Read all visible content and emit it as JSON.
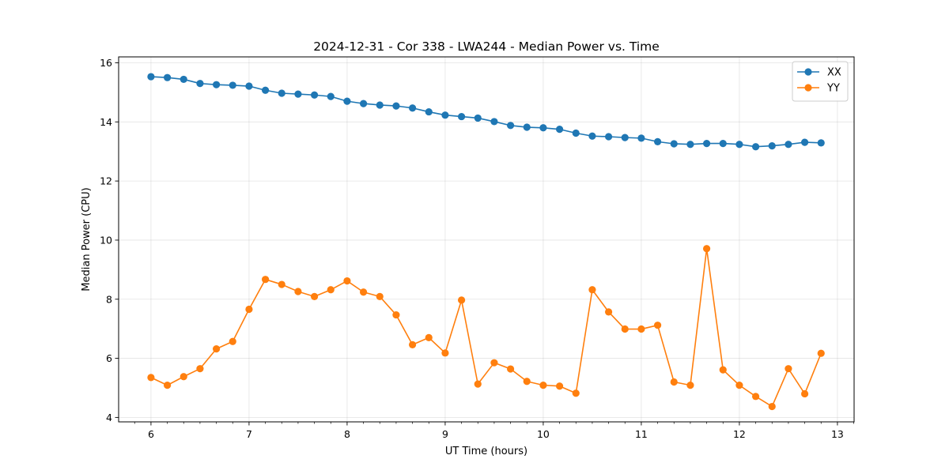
{
  "chart_data": {
    "type": "line",
    "title": "2024-12-31 - Cor 338 - LWA244 - Median Power vs. Time",
    "xlabel": "UT Time (hours)",
    "ylabel": "Median Power (CPU)",
    "xlim": [
      5.67,
      13.17
    ],
    "ylim": [
      3.85,
      16.2
    ],
    "x_ticks": [
      6,
      7,
      8,
      9,
      10,
      11,
      12,
      13
    ],
    "y_ticks": [
      4,
      6,
      8,
      10,
      12,
      14,
      16
    ],
    "grid": true,
    "legend_position": "top-right",
    "x": [
      6.0,
      6.1667,
      6.3333,
      6.5,
      6.6667,
      6.8333,
      7.0,
      7.1667,
      7.3333,
      7.5,
      7.6667,
      7.8333,
      8.0,
      8.1667,
      8.3333,
      8.5,
      8.6667,
      8.8333,
      9.0,
      9.1667,
      9.3333,
      9.5,
      9.6667,
      9.8333,
      10.0,
      10.1667,
      10.3333,
      10.5,
      10.6667,
      10.8333,
      11.0,
      11.1667,
      11.3333,
      11.5,
      11.6667,
      11.8333,
      12.0,
      12.1667,
      12.3333,
      12.5,
      12.6667,
      12.8333
    ],
    "series": [
      {
        "name": "XX",
        "color": "#1f77b4",
        "values": [
          15.53,
          15.5,
          15.44,
          15.3,
          15.26,
          15.24,
          15.21,
          15.07,
          14.97,
          14.94,
          14.91,
          14.86,
          14.7,
          14.62,
          14.57,
          14.54,
          14.47,
          14.34,
          14.23,
          14.18,
          14.13,
          14.01,
          13.88,
          13.82,
          13.8,
          13.75,
          13.62,
          13.52,
          13.5,
          13.47,
          13.45,
          13.33,
          13.26,
          13.24,
          13.27,
          13.27,
          13.24,
          13.16,
          13.19,
          13.24,
          13.31,
          13.29
        ]
      },
      {
        "name": "YY",
        "color": "#ff7f0e",
        "values": [
          5.35,
          5.09,
          5.38,
          5.65,
          6.32,
          6.57,
          7.66,
          8.67,
          8.5,
          8.26,
          8.09,
          8.32,
          8.62,
          8.24,
          8.09,
          7.47,
          6.46,
          6.7,
          6.18,
          7.97,
          5.13,
          5.85,
          5.64,
          5.22,
          5.09,
          5.06,
          4.82,
          8.32,
          7.57,
          6.99,
          6.99,
          7.12,
          5.2,
          5.09,
          9.71,
          5.61,
          5.09,
          4.71,
          4.37,
          5.65,
          4.8,
          6.17
        ]
      }
    ]
  }
}
